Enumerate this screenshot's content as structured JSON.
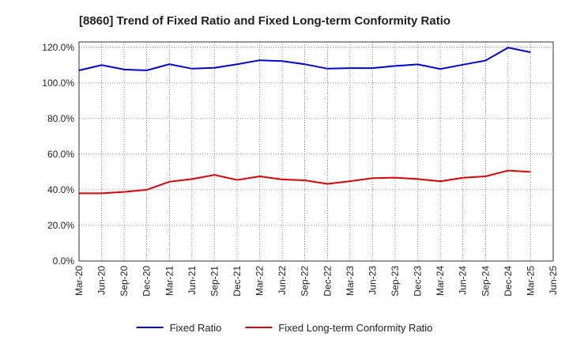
{
  "chart_data": {
    "type": "line",
    "title": "[8860]  Trend of Fixed Ratio and Fixed Long-term Conformity Ratio",
    "xlabel": "",
    "ylabel": "",
    "categories": [
      "Mar-20",
      "Jun-20",
      "Sep-20",
      "Dec-20",
      "Mar-21",
      "Jun-21",
      "Sep-21",
      "Dec-21",
      "Mar-22",
      "Jun-22",
      "Sep-22",
      "Dec-22",
      "Mar-23",
      "Jun-23",
      "Sep-23",
      "Dec-23",
      "Mar-24",
      "Jun-24",
      "Sep-24",
      "Dec-24",
      "Mar-25",
      "Jun-25"
    ],
    "y_ticks": [
      "0.0%",
      "20.0%",
      "40.0%",
      "60.0%",
      "80.0%",
      "100.0%",
      "120.0%"
    ],
    "ylim": [
      0,
      123
    ],
    "y_unit": "%",
    "grid": true,
    "legend_position": "bottom",
    "series": [
      {
        "name": "Fixed Ratio",
        "color": "#0000dd",
        "values": [
          107.0,
          110.0,
          107.5,
          107.0,
          110.5,
          108.0,
          108.5,
          110.5,
          112.7,
          112.2,
          110.5,
          108.0,
          108.3,
          108.3,
          109.5,
          110.4,
          107.8,
          110.2,
          112.5,
          119.8,
          117.2,
          null
        ]
      },
      {
        "name": "Fixed Long-term Conformity Ratio",
        "color": "#dd0000",
        "values": [
          38.0,
          38.0,
          38.8,
          40.0,
          44.5,
          46.0,
          48.3,
          45.5,
          47.5,
          45.8,
          45.3,
          43.3,
          44.8,
          46.5,
          46.8,
          46.0,
          44.7,
          46.7,
          47.5,
          50.8,
          50.0,
          null
        ]
      }
    ]
  }
}
